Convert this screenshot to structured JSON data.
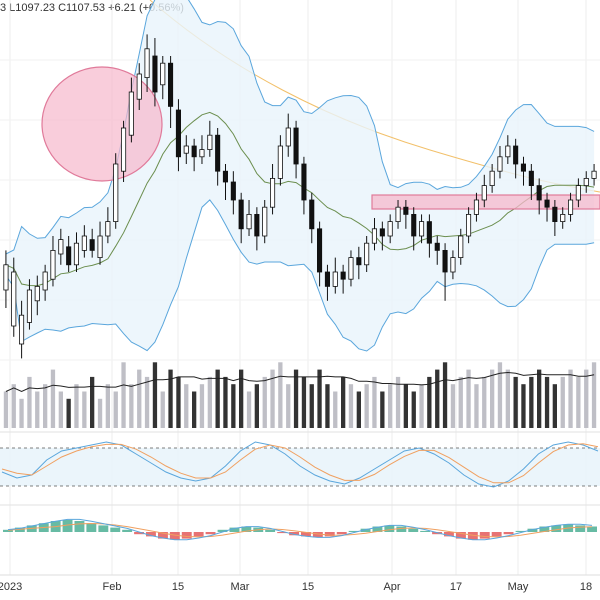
{
  "header": {
    "ohlc_text": "3  L1097.23  C1107.53  +6.21 (+0.56%)"
  },
  "colors": {
    "candle_up": "#ffffff",
    "candle_down": "#111111",
    "bollinger_line": "#5aa6dc",
    "bollinger_fill": "#e9f4fb",
    "sma_line": "#6b8e4e",
    "long_ma_line": "#f2c06a",
    "volume_up": "#bfbfc6",
    "volume_down": "#333333",
    "volume_ma": "#222222",
    "highlight_fill": "#f6b8cc",
    "highlight_stroke": "#e07a9a",
    "stoch_k": "#5aa6dc",
    "stoch_d": "#f0a060",
    "macd_pos": "#4caf94",
    "macd_neg": "#e35b5b",
    "signal_line": "#f0a060"
  },
  "chart_data": {
    "type": "candlestick",
    "x_tick_labels": [
      "2023",
      "Feb",
      "15",
      "Mar",
      "15",
      "Apr",
      "17",
      "May",
      "18"
    ],
    "price_candles": [
      [
        0.55,
        0.62,
        0.5,
        0.66
      ],
      [
        0.45,
        0.6,
        0.42,
        0.64
      ],
      [
        0.4,
        0.48,
        0.36,
        0.52
      ],
      [
        0.46,
        0.55,
        0.44,
        0.58
      ],
      [
        0.52,
        0.56,
        0.48,
        0.59
      ],
      [
        0.55,
        0.6,
        0.52,
        0.62
      ],
      [
        0.58,
        0.66,
        0.56,
        0.7
      ],
      [
        0.65,
        0.69,
        0.62,
        0.72
      ],
      [
        0.67,
        0.62,
        0.6,
        0.7
      ],
      [
        0.62,
        0.68,
        0.6,
        0.71
      ],
      [
        0.66,
        0.7,
        0.64,
        0.73
      ],
      [
        0.69,
        0.66,
        0.64,
        0.72
      ],
      [
        0.64,
        0.7,
        0.62,
        0.74
      ],
      [
        0.7,
        0.74,
        0.68,
        0.78
      ],
      [
        0.74,
        0.9,
        0.72,
        0.93
      ],
      [
        0.88,
        1.0,
        0.85,
        1.02
      ],
      [
        0.98,
        1.1,
        0.96,
        1.14
      ],
      [
        1.08,
        1.15,
        1.05,
        1.18
      ],
      [
        1.14,
        1.22,
        1.1,
        1.26
      ],
      [
        1.2,
        1.1,
        1.06,
        1.25
      ],
      [
        1.12,
        1.18,
        1.08,
        1.2
      ],
      [
        1.18,
        1.06,
        1.0,
        1.2
      ],
      [
        1.05,
        0.92,
        0.88,
        1.08
      ],
      [
        0.93,
        0.95,
        0.9,
        0.98
      ],
      [
        0.95,
        0.92,
        0.88,
        0.97
      ],
      [
        0.92,
        0.94,
        0.9,
        0.98
      ],
      [
        0.94,
        0.98,
        0.92,
        1.02
      ],
      [
        0.98,
        0.88,
        0.84,
        1.0
      ],
      [
        0.88,
        0.85,
        0.8,
        0.9
      ],
      [
        0.85,
        0.8,
        0.76,
        0.88
      ],
      [
        0.8,
        0.72,
        0.68,
        0.82
      ],
      [
        0.72,
        0.76,
        0.7,
        0.8
      ],
      [
        0.76,
        0.7,
        0.66,
        0.78
      ],
      [
        0.7,
        0.78,
        0.68,
        0.8
      ],
      [
        0.78,
        0.86,
        0.76,
        0.9
      ],
      [
        0.86,
        0.95,
        0.84,
        0.98
      ],
      [
        0.95,
        1.0,
        0.92,
        1.04
      ],
      [
        1.0,
        0.9,
        0.86,
        1.02
      ],
      [
        0.9,
        0.8,
        0.76,
        0.92
      ],
      [
        0.8,
        0.72,
        0.68,
        0.82
      ],
      [
        0.72,
        0.6,
        0.56,
        0.74
      ],
      [
        0.6,
        0.56,
        0.52,
        0.62
      ],
      [
        0.56,
        0.6,
        0.54,
        0.64
      ],
      [
        0.6,
        0.58,
        0.54,
        0.62
      ],
      [
        0.58,
        0.64,
        0.56,
        0.66
      ],
      [
        0.64,
        0.62,
        0.58,
        0.67
      ],
      [
        0.62,
        0.68,
        0.6,
        0.7
      ],
      [
        0.68,
        0.72,
        0.66,
        0.75
      ],
      [
        0.72,
        0.7,
        0.66,
        0.74
      ],
      [
        0.7,
        0.74,
        0.68,
        0.76
      ],
      [
        0.74,
        0.78,
        0.72,
        0.8
      ],
      [
        0.78,
        0.76,
        0.72,
        0.8
      ],
      [
        0.76,
        0.7,
        0.66,
        0.78
      ],
      [
        0.7,
        0.74,
        0.68,
        0.76
      ],
      [
        0.74,
        0.68,
        0.64,
        0.76
      ],
      [
        0.68,
        0.66,
        0.62,
        0.7
      ],
      [
        0.66,
        0.6,
        0.52,
        0.68
      ],
      [
        0.6,
        0.64,
        0.58,
        0.66
      ],
      [
        0.64,
        0.7,
        0.62,
        0.72
      ],
      [
        0.7,
        0.76,
        0.68,
        0.78
      ],
      [
        0.76,
        0.8,
        0.74,
        0.82
      ],
      [
        0.8,
        0.84,
        0.78,
        0.87
      ],
      [
        0.84,
        0.88,
        0.82,
        0.9
      ],
      [
        0.88,
        0.92,
        0.86,
        0.95
      ],
      [
        0.92,
        0.95,
        0.9,
        0.98
      ],
      [
        0.95,
        0.9,
        0.86,
        0.97
      ],
      [
        0.9,
        0.88,
        0.84,
        0.92
      ],
      [
        0.88,
        0.84,
        0.8,
        0.9
      ],
      [
        0.84,
        0.8,
        0.76,
        0.86
      ],
      [
        0.8,
        0.78,
        0.74,
        0.82
      ],
      [
        0.78,
        0.74,
        0.7,
        0.8
      ],
      [
        0.74,
        0.76,
        0.72,
        0.78
      ],
      [
        0.76,
        0.8,
        0.74,
        0.82
      ],
      [
        0.8,
        0.84,
        0.78,
        0.86
      ],
      [
        0.84,
        0.86,
        0.82,
        0.88
      ],
      [
        0.86,
        0.88,
        0.84,
        0.9
      ]
    ],
    "volume": [
      0.5,
      0.6,
      0.4,
      0.7,
      0.5,
      0.6,
      0.8,
      0.5,
      0.4,
      0.6,
      0.5,
      0.7,
      0.4,
      0.6,
      0.5,
      0.9,
      0.6,
      0.8,
      0.7,
      0.9,
      0.5,
      0.8,
      0.7,
      0.6,
      0.5,
      0.6,
      0.7,
      0.8,
      0.7,
      0.6,
      0.8,
      0.5,
      0.6,
      0.7,
      0.8,
      0.9,
      0.6,
      0.8,
      0.7,
      0.6,
      0.8,
      0.6,
      0.5,
      0.7,
      0.6,
      0.5,
      0.6,
      0.7,
      0.5,
      0.6,
      0.7,
      0.6,
      0.5,
      0.6,
      0.7,
      0.8,
      0.9,
      0.6,
      0.7,
      0.8,
      0.6,
      0.7,
      0.8,
      0.9,
      0.8,
      0.7,
      0.6,
      0.7,
      0.8,
      0.7,
      0.6,
      0.7,
      0.8,
      0.7,
      0.8,
      0.9
    ],
    "stochastic_k": [
      0.4,
      0.3,
      0.35,
      0.6,
      0.75,
      0.8,
      0.85,
      0.9,
      0.85,
      0.7,
      0.55,
      0.4,
      0.3,
      0.25,
      0.3,
      0.5,
      0.75,
      0.9,
      0.85,
      0.7,
      0.5,
      0.35,
      0.25,
      0.2,
      0.3,
      0.45,
      0.6,
      0.75,
      0.8,
      0.7,
      0.55,
      0.35,
      0.2,
      0.15,
      0.25,
      0.45,
      0.7,
      0.85,
      0.9,
      0.85,
      0.75
    ],
    "stochastic_d": [
      0.45,
      0.38,
      0.35,
      0.5,
      0.65,
      0.75,
      0.82,
      0.86,
      0.86,
      0.78,
      0.65,
      0.5,
      0.38,
      0.3,
      0.3,
      0.4,
      0.6,
      0.78,
      0.85,
      0.8,
      0.65,
      0.48,
      0.35,
      0.26,
      0.26,
      0.36,
      0.52,
      0.66,
      0.76,
      0.76,
      0.64,
      0.48,
      0.32,
      0.22,
      0.22,
      0.34,
      0.55,
      0.74,
      0.85,
      0.87,
      0.82
    ],
    "macd_hist": [
      0.1,
      0.2,
      0.3,
      0.4,
      0.5,
      0.55,
      0.5,
      0.4,
      0.3,
      0.2,
      0.1,
      -0.1,
      -0.2,
      -0.3,
      -0.35,
      -0.3,
      -0.2,
      -0.1,
      0.1,
      0.2,
      0.25,
      0.2,
      0.1,
      -0.05,
      -0.15,
      -0.2,
      -0.25,
      -0.2,
      -0.1,
      0.05,
      0.15,
      0.25,
      0.3,
      0.25,
      0.15,
      0.05,
      -0.1,
      -0.2,
      -0.3,
      -0.35,
      -0.3,
      -0.2,
      -0.1,
      0.05,
      0.15,
      0.25,
      0.3,
      0.35,
      0.3,
      0.25
    ]
  }
}
